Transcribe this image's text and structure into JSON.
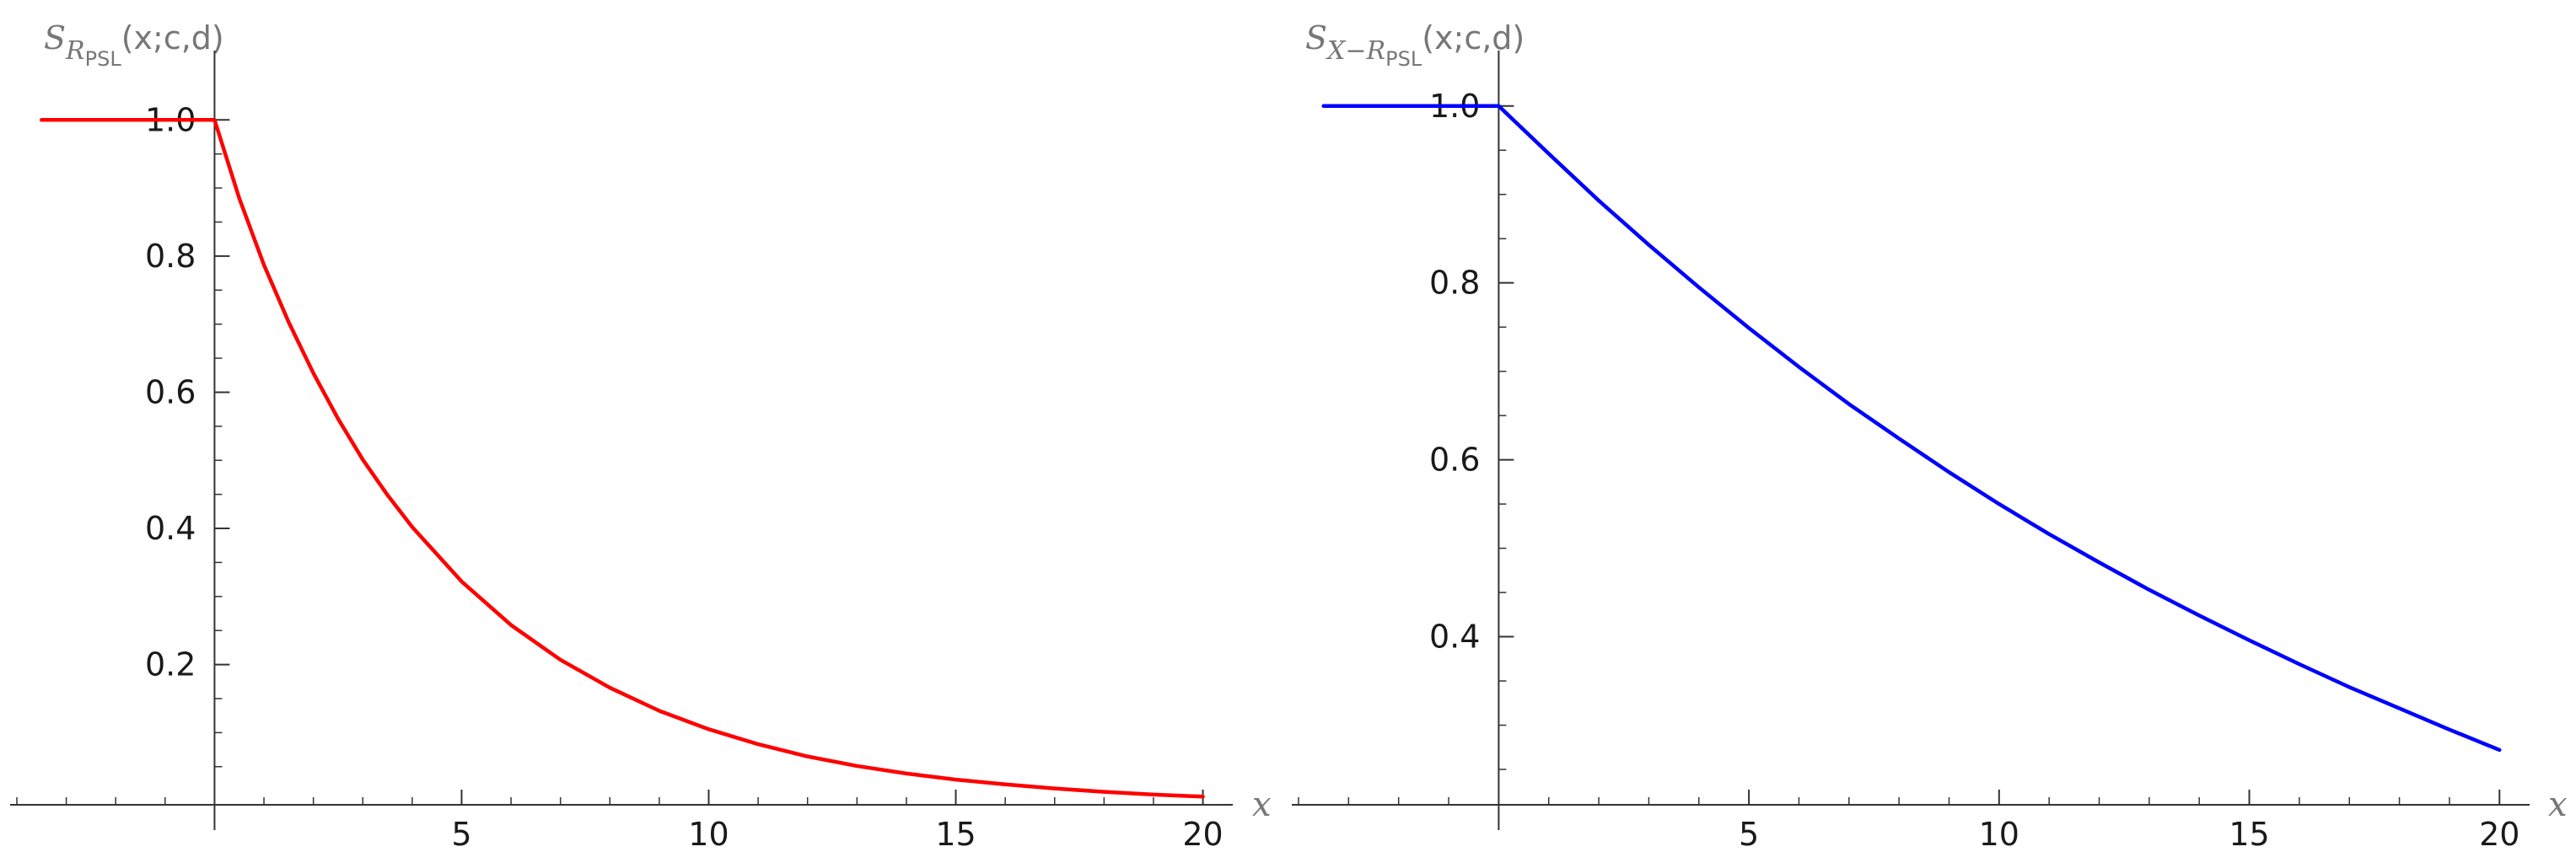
{
  "chart_data": [
    {
      "type": "line",
      "title": {
        "main": "S",
        "subscript": "R",
        "subsubscript": "PSL",
        "args": "(x;c,d)"
      },
      "xlabel": "x",
      "ylabel": "",
      "xlim": [
        -4,
        20.4
      ],
      "ylim": [
        -0.006,
        1.04
      ],
      "xticks": [
        5,
        10,
        15,
        20
      ],
      "xtick_labels": [
        "5",
        "10",
        "15",
        "20"
      ],
      "yticks": [
        0.2,
        0.4,
        0.6,
        0.8,
        1.0
      ],
      "ytick_labels": [
        "0.2",
        "0.4",
        "0.6",
        "0.8",
        "1.0"
      ],
      "grid": false,
      "legend": "none",
      "color": "#ff0000",
      "series": [
        {
          "x": [
            -3.5,
            -2,
            -1,
            0,
            0.5,
            1,
            1.5,
            2,
            2.5,
            3,
            3.5,
            4,
            5,
            6,
            7,
            8,
            9,
            10,
            11,
            12,
            13,
            14,
            15,
            16,
            17,
            18,
            19,
            20
          ],
          "values": [
            1.0,
            1.0,
            1.0,
            1.0,
            0.885,
            0.787,
            0.703,
            0.628,
            0.561,
            0.501,
            0.449,
            0.402,
            0.322,
            0.258,
            0.207,
            0.166,
            0.132,
            0.105,
            0.083,
            0.065,
            0.051,
            0.04,
            0.031,
            0.024,
            0.018,
            0.013,
            0.009,
            0.006
          ]
        }
      ]
    },
    {
      "type": "line",
      "title": {
        "main": "S",
        "subscript": "X−R",
        "subsubscript": "PSL",
        "args": "(x;c,d)"
      },
      "xlabel": "x",
      "ylabel": "",
      "xlim": [
        -4,
        20.4
      ],
      "ylim": [
        0.21,
        1.015
      ],
      "xticks": [
        5,
        10,
        15,
        20
      ],
      "xtick_labels": [
        "5",
        "10",
        "15",
        "20"
      ],
      "yticks": [
        0.4,
        0.6,
        0.8,
        1.0
      ],
      "ytick_labels": [
        "0.4",
        "0.6",
        "0.8",
        "1.0"
      ],
      "grid": false,
      "legend": "none",
      "color": "#0000ff",
      "series": [
        {
          "x": [
            -3.5,
            -2,
            -1,
            0,
            1,
            2,
            3,
            4,
            5,
            6,
            7,
            8,
            9,
            10,
            11,
            12,
            13,
            14,
            15,
            16,
            17,
            18,
            19,
            20
          ],
          "values": [
            1.0,
            1.0,
            1.0,
            1.0,
            0.946,
            0.893,
            0.843,
            0.795,
            0.749,
            0.705,
            0.663,
            0.624,
            0.586,
            0.55,
            0.516,
            0.484,
            0.453,
            0.424,
            0.396,
            0.369,
            0.343,
            0.319,
            0.295,
            0.272
          ]
        }
      ]
    }
  ]
}
